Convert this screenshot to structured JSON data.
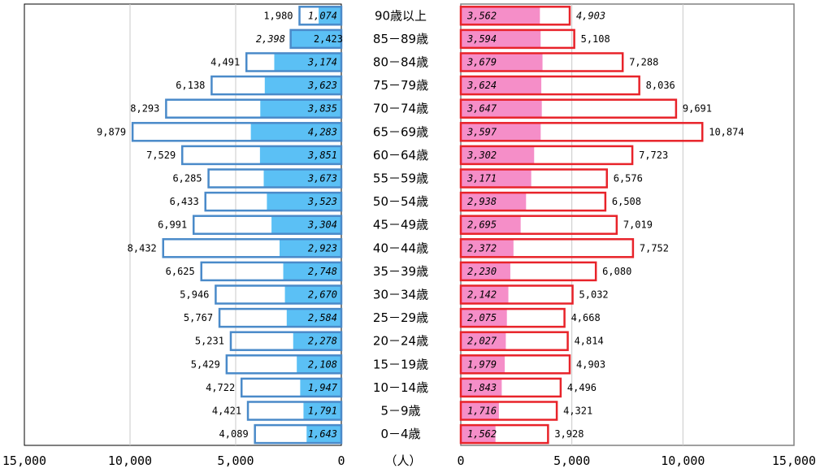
{
  "chart_data": {
    "type": "bar",
    "orientation": "horizontal",
    "layout": "population-pyramid",
    "unit_label": "（人）",
    "categories": [
      "90歳以上",
      "85－89歳",
      "80－84歳",
      "75－79歳",
      "70－74歳",
      "65－69歳",
      "60－64歳",
      "55－59歳",
      "50－54歳",
      "45－49歳",
      "40－44歳",
      "35－39歳",
      "30－34歳",
      "25－29歳",
      "20－24歳",
      "15－19歳",
      "10－14歳",
      "5－9歳",
      "0－4歳"
    ],
    "left": {
      "xlim": [
        0,
        15000
      ],
      "ticks": [
        "15,000",
        "10,000",
        "5,000",
        "0"
      ],
      "total_values": [
        1980,
        2398,
        4491,
        6138,
        8293,
        9879,
        7529,
        6285,
        6433,
        6991,
        8432,
        6625,
        5946,
        5767,
        5231,
        5429,
        4722,
        4421,
        4089
      ],
      "total_labels": [
        "1,980",
        "2,398",
        "4,491",
        "6,138",
        "8,293",
        "9,879",
        "7,529",
        "6,285",
        "6,433",
        "6,991",
        "8,432",
        "6,625",
        "5,946",
        "5,767",
        "5,231",
        "5,429",
        "4,722",
        "4,421",
        "4,089"
      ],
      "inner_values": [
        1074,
        2423,
        3174,
        3623,
        3835,
        4283,
        3851,
        3673,
        3523,
        3304,
        2923,
        2748,
        2670,
        2584,
        2278,
        2108,
        1947,
        1791,
        1643
      ],
      "inner_labels": [
        "1,074",
        "2,423",
        "3,174",
        "3,623",
        "3,835",
        "4,283",
        "3,851",
        "3,673",
        "3,523",
        "3,304",
        "2,923",
        "2,748",
        "2,670",
        "2,584",
        "2,278",
        "2,108",
        "1,947",
        "1,791",
        "1,643"
      ],
      "fill_color": "#5bc0f5",
      "outline_color": "#4a8ac9"
    },
    "right": {
      "xlim": [
        0,
        15000
      ],
      "ticks": [
        "0",
        "5,000",
        "10,000",
        "15,000"
      ],
      "total_values": [
        4903,
        5108,
        7288,
        8036,
        9691,
        10874,
        7723,
        6576,
        6508,
        7019,
        7752,
        6080,
        5032,
        4668,
        4814,
        4903,
        4496,
        4321,
        3928
      ],
      "total_labels": [
        "4,903",
        "5,108",
        "7,288",
        "8,036",
        "9,691",
        "10,874",
        "7,723",
        "6,576",
        "6,508",
        "7,019",
        "7,752",
        "6,080",
        "5,032",
        "4,668",
        "4,814",
        "4,903",
        "4,496",
        "4,321",
        "3,928"
      ],
      "inner_values": [
        3562,
        3594,
        3679,
        3624,
        3647,
        3597,
        3302,
        3171,
        2938,
        2695,
        2372,
        2230,
        2142,
        2075,
        2027,
        1979,
        1843,
        1716,
        1562
      ],
      "inner_labels": [
        "3,562",
        "3,594",
        "3,679",
        "3,624",
        "3,647",
        "3,597",
        "3,302",
        "3,171",
        "2,938",
        "2,695",
        "2,372",
        "2,230",
        "2,142",
        "2,075",
        "2,027",
        "1,979",
        "1,843",
        "1,716",
        "1,562"
      ],
      "fill_color": "#f58ec8",
      "outline_color": "#e8232a"
    },
    "grid": true
  }
}
